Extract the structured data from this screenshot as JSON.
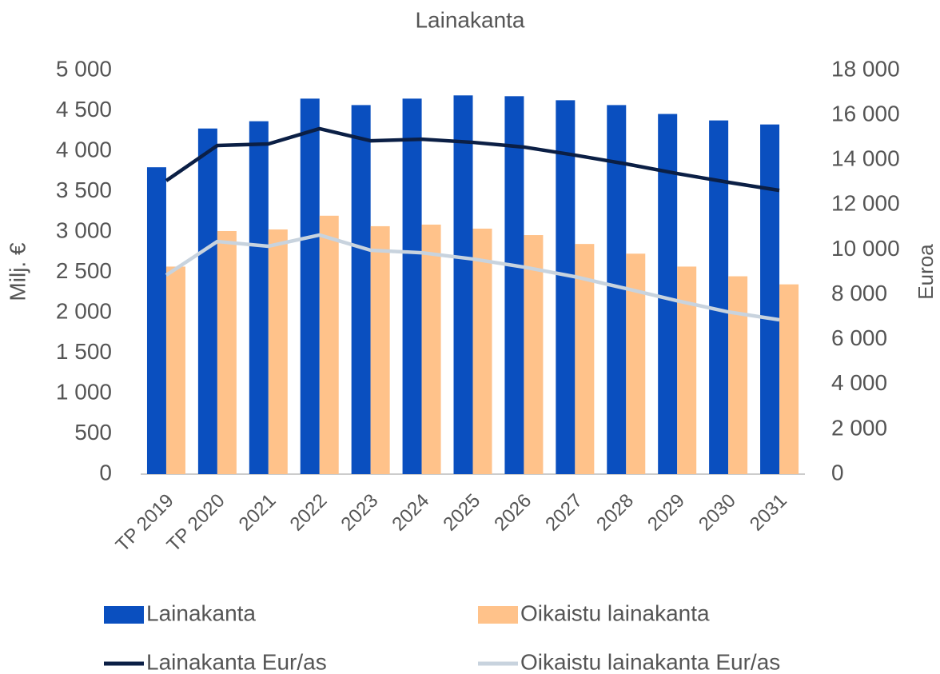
{
  "chart_data": {
    "type": "bar+line",
    "title": "Lainakanta",
    "y_label": "Milj. €",
    "y2_label": "Euroa",
    "categories": [
      "TP 2019",
      "TP 2020",
      "2021",
      "2022",
      "2023",
      "2024",
      "2025",
      "2026",
      "2027",
      "2028",
      "2029",
      "2030",
      "2031"
    ],
    "series": [
      {
        "name": "Lainakanta",
        "type": "bar",
        "color": "#0a4fbf",
        "values": [
          3800,
          4280,
          4370,
          4650,
          4570,
          4650,
          4690,
          4680,
          4630,
          4570,
          4460,
          4380,
          4330
        ]
      },
      {
        "name": "Oikaistu lainakanta",
        "type": "bar",
        "color": "#ffc28a",
        "values": [
          2570,
          3010,
          3030,
          3200,
          3070,
          3090,
          3040,
          2960,
          2850,
          2730,
          2570,
          2450,
          2350
        ]
      },
      {
        "name": "Lainakanta Eur/as",
        "type": "line",
        "axis": "y2",
        "color": "#0b1f45",
        "values": [
          13080,
          14650,
          14720,
          15400,
          14860,
          14930,
          14790,
          14580,
          14220,
          13830,
          13400,
          13010,
          12650
        ]
      },
      {
        "name": "Oikaistu lainakanta Eur/as",
        "type": "line",
        "axis": "y2",
        "color": "#c8d3de",
        "values": [
          8870,
          10370,
          10160,
          10660,
          9980,
          9870,
          9590,
          9230,
          8800,
          8270,
          7730,
          7230,
          6880
        ]
      }
    ],
    "ylim": [
      0,
      5000
    ],
    "yticks": [
      0,
      500,
      {
        "value": 1000,
        "label": "1 000"
      },
      {
        "value": 1500,
        "label": "1 500"
      },
      {
        "value": 2000,
        "label": "2 000"
      },
      {
        "value": 2500,
        "label": "2 500"
      },
      {
        "value": 3000,
        "label": "3 000"
      },
      {
        "value": 3500,
        "label": "3 500"
      },
      {
        "value": 4000,
        "label": "4 000"
      },
      {
        "value": 4500,
        "label": "4 500"
      },
      {
        "value": 5000,
        "label": "5 000"
      }
    ],
    "y2lim": [
      0,
      18000
    ],
    "y2ticks": [
      0,
      {
        "value": 2000,
        "label": "2 000"
      },
      {
        "value": 4000,
        "label": "4 000"
      },
      {
        "value": 6000,
        "label": "6 000"
      },
      {
        "value": 8000,
        "label": "8 000"
      },
      {
        "value": 10000,
        "label": "10 000"
      },
      {
        "value": 12000,
        "label": "12 000"
      },
      {
        "value": 14000,
        "label": "14 000"
      },
      {
        "value": 16000,
        "label": "16 000"
      },
      {
        "value": 18000,
        "label": "18 000"
      }
    ],
    "grid": false,
    "legend": "bottom"
  }
}
